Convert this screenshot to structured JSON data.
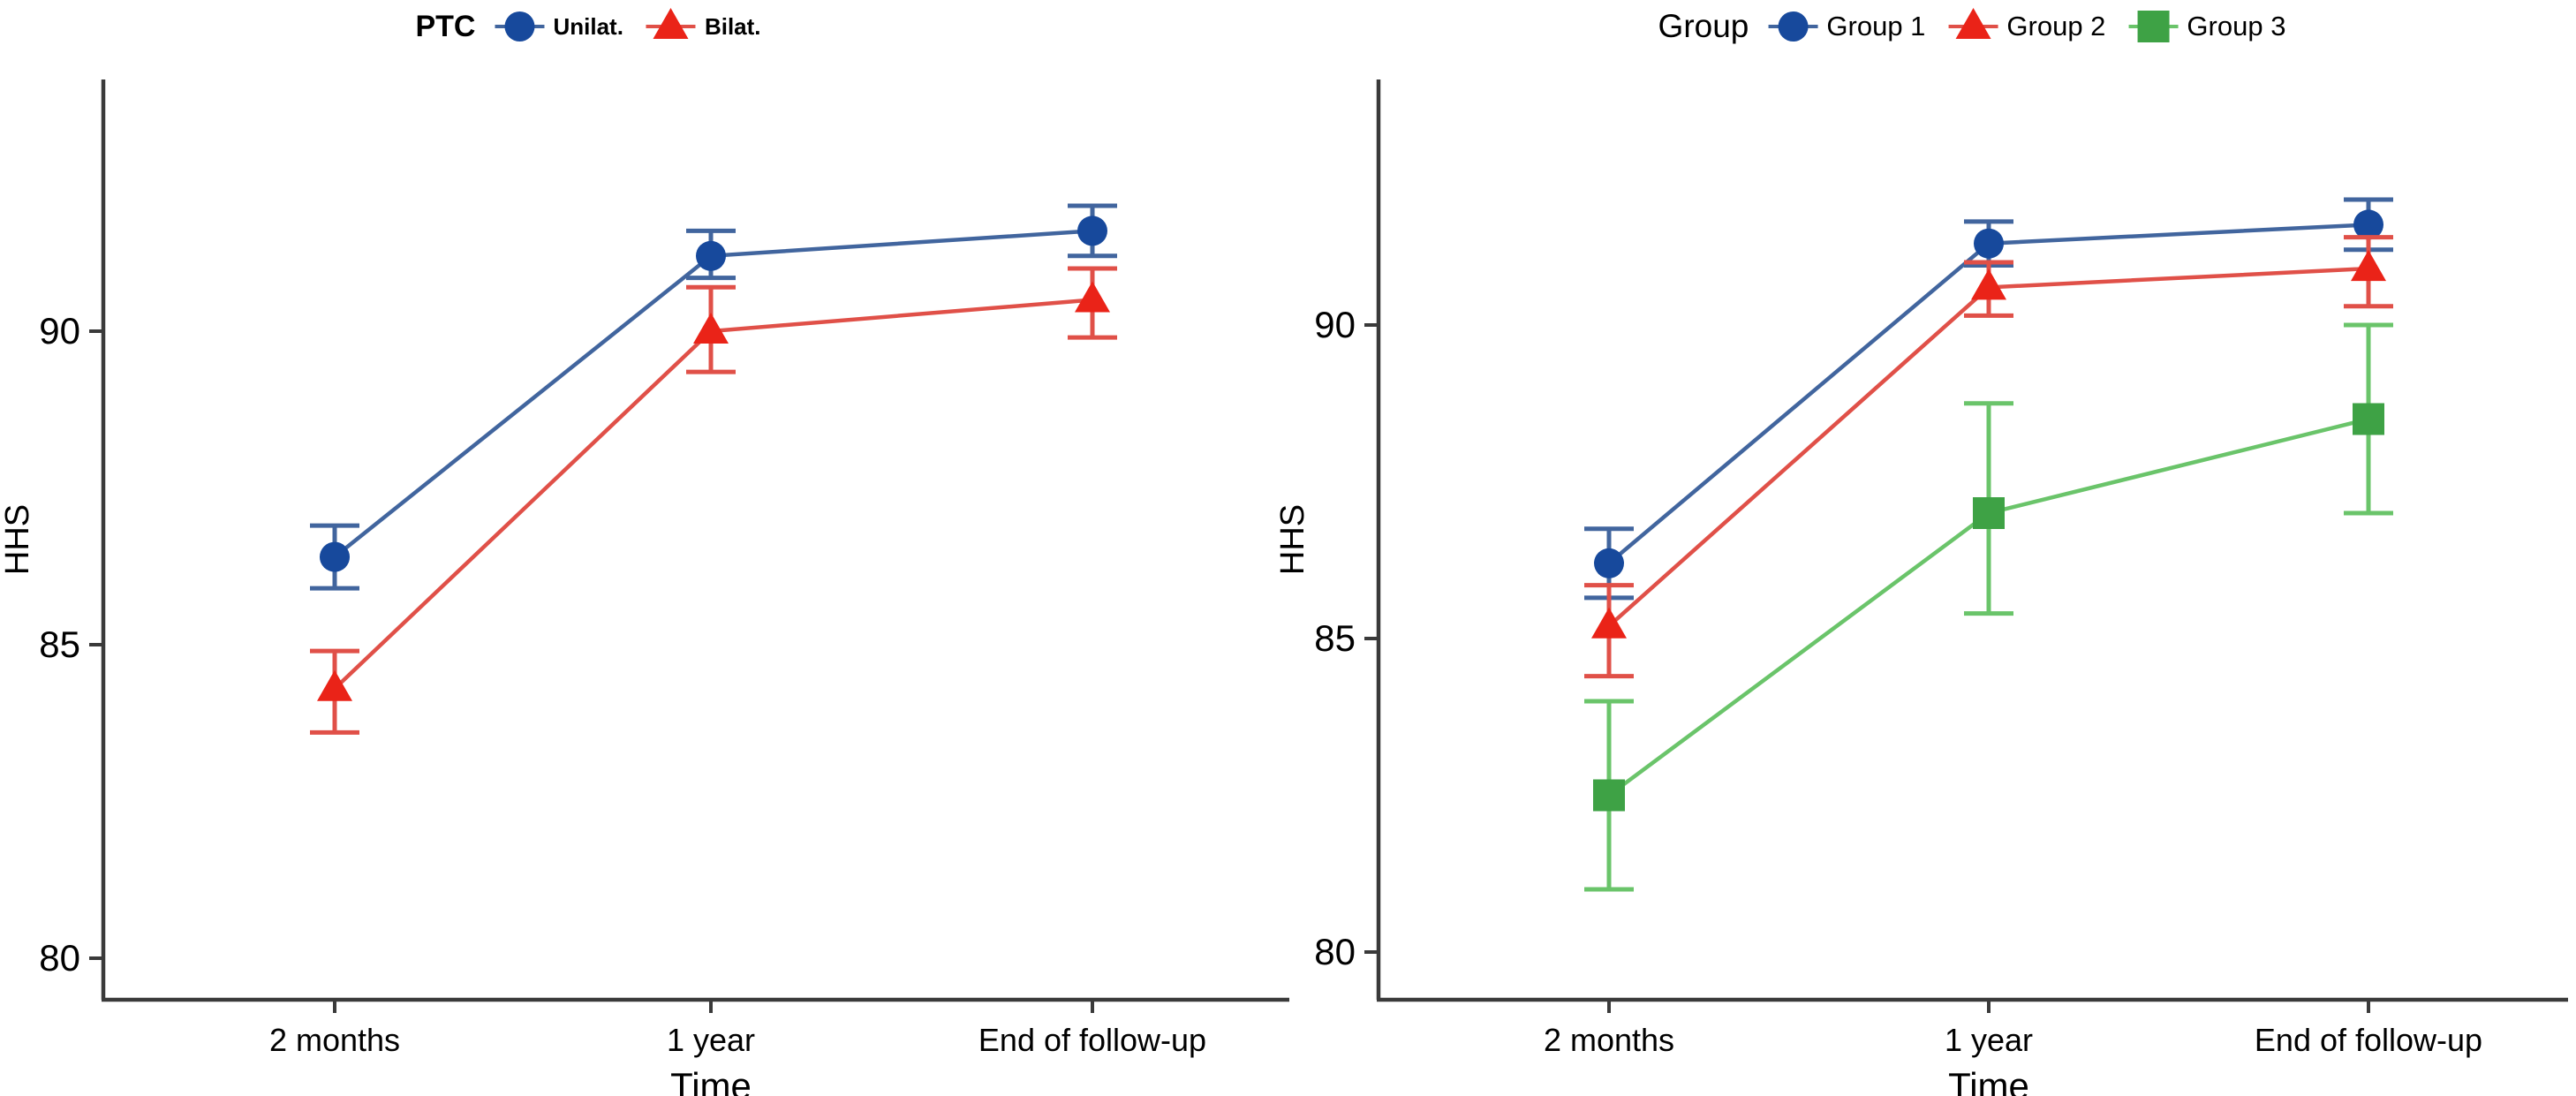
{
  "figure": {
    "background": "#ffffff"
  },
  "chart_data": [
    {
      "type": "line",
      "legend": {
        "title": "PTC",
        "position": "top-center"
      },
      "categories": [
        "2 months",
        "1 year",
        "End of follow-up"
      ],
      "xlabel": "Time",
      "ylabel": "HHS",
      "yticks": [
        80,
        85,
        90
      ],
      "ylim": [
        79.3,
        94.0
      ],
      "grid": false,
      "error_bars": true,
      "series": [
        {
          "name": "Unilat.",
          "marker": "circle",
          "marker_color": "#17499c",
          "line_color": "#41659e",
          "values": [
            86.4,
            91.2,
            91.6
          ],
          "err_low": [
            85.9,
            90.85,
            91.2
          ],
          "err_high": [
            86.9,
            91.6,
            92.0
          ]
        },
        {
          "name": "Bilat.",
          "marker": "triangle",
          "marker_color": "#ea2318",
          "line_color": "#e05048",
          "values": [
            84.3,
            90.0,
            90.5
          ],
          "err_low": [
            83.6,
            89.35,
            89.9
          ],
          "err_high": [
            84.9,
            90.7,
            91.0
          ]
        }
      ]
    },
    {
      "type": "line",
      "legend": {
        "title": "Group",
        "position": "top-center"
      },
      "categories": [
        "2 months",
        "1 year",
        "End of follow-up"
      ],
      "xlabel": "Time",
      "ylabel": "HHS",
      "yticks": [
        80,
        85,
        90
      ],
      "ylim": [
        79.3,
        94.0
      ],
      "grid": false,
      "error_bars": true,
      "series": [
        {
          "name": "Group 1",
          "marker": "circle",
          "marker_color": "#17499c",
          "line_color": "#41659e",
          "values": [
            86.2,
            91.3,
            91.6
          ],
          "err_low": [
            85.65,
            90.95,
            91.2
          ],
          "err_high": [
            86.75,
            91.65,
            92.0
          ]
        },
        {
          "name": "Group 2",
          "marker": "triangle",
          "marker_color": "#ea2318",
          "line_color": "#e05048",
          "values": [
            85.2,
            90.6,
            90.9
          ],
          "err_low": [
            84.4,
            90.15,
            90.3
          ],
          "err_high": [
            85.85,
            91.0,
            91.4
          ]
        },
        {
          "name": "Group 3",
          "marker": "square",
          "marker_color": "#3ea245",
          "line_color": "#6ac46a",
          "values": [
            82.5,
            87.0,
            88.5
          ],
          "err_low": [
            81.0,
            85.4,
            87.0
          ],
          "err_high": [
            84.0,
            88.75,
            90.0
          ]
        }
      ]
    }
  ]
}
